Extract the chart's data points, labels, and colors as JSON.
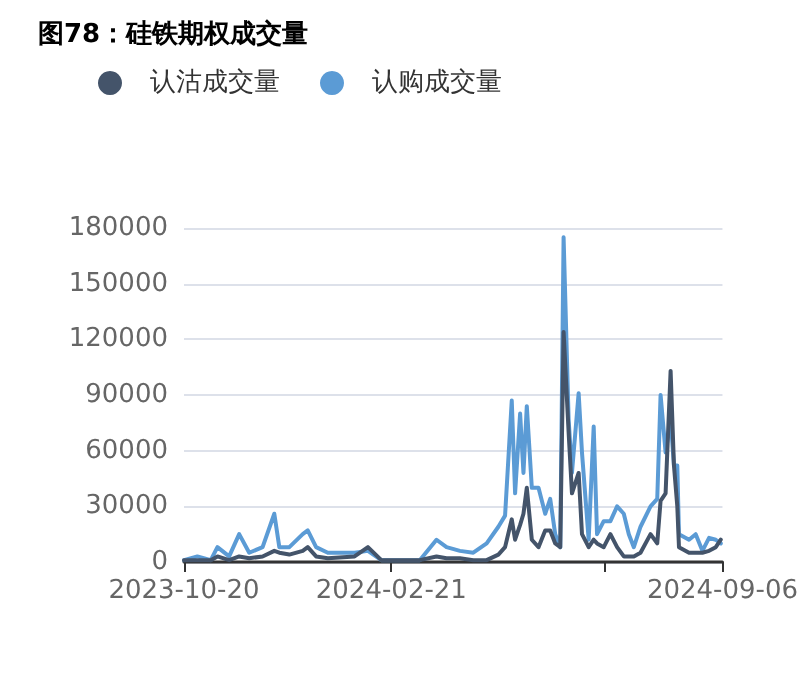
{
  "chart_data": {
    "type": "line",
    "title": "图78：硅铁期权成交量",
    "x": [
      "2023-10-20",
      "2023-10-28",
      "2023-11-05",
      "2023-11-09",
      "2023-11-16",
      "2023-11-22",
      "2023-11-28",
      "2023-12-06",
      "2023-12-13",
      "2023-12-16",
      "2023-12-22",
      "2023-12-30",
      "2024-01-02",
      "2024-01-07",
      "2024-01-14",
      "2024-01-30",
      "2024-02-07",
      "2024-02-15",
      "2024-03-02",
      "2024-03-09",
      "2024-03-19",
      "2024-03-25",
      "2024-04-02",
      "2024-04-10",
      "2024-04-18",
      "2024-04-25",
      "2024-04-29",
      "2024-05-03",
      "2024-05-05",
      "2024-05-08",
      "2024-05-10",
      "2024-05-12",
      "2024-05-15",
      "2024-05-19",
      "2024-05-23",
      "2024-05-26",
      "2024-05-29",
      "2024-06-01",
      "2024-06-03",
      "2024-06-06",
      "2024-06-08",
      "2024-06-12",
      "2024-06-14",
      "2024-06-18",
      "2024-06-21",
      "2024-06-23",
      "2024-06-27",
      "2024-07-01",
      "2024-07-05",
      "2024-07-09",
      "2024-07-12",
      "2024-07-15",
      "2024-07-19",
      "2024-07-25",
      "2024-07-29",
      "2024-07-31",
      "2024-08-03",
      "2024-08-06",
      "2024-08-08",
      "2024-08-10",
      "2024-08-11",
      "2024-08-17",
      "2024-08-21",
      "2024-08-25",
      "2024-08-29",
      "2024-09-02",
      "2024-09-05"
    ],
    "series": [
      {
        "name": "认沽成交量",
        "color": "#44546a",
        "values": [
          1000,
          1000,
          1000,
          3000,
          1000,
          3000,
          2000,
          3000,
          6000,
          5000,
          4000,
          6000,
          8000,
          3000,
          2000,
          3000,
          8000,
          1000,
          1000,
          1000,
          3000,
          2000,
          2000,
          1000,
          1000,
          4000,
          8000,
          23000,
          12000,
          20000,
          26000,
          40000,
          12000,
          8000,
          17000,
          17000,
          10000,
          8000,
          124000,
          70000,
          37000,
          48000,
          15000,
          8000,
          12000,
          10000,
          8000,
          15000,
          8000,
          3000,
          3000,
          3000,
          5000,
          15000,
          10000,
          33000,
          37000,
          103000,
          52000,
          30000,
          8000,
          5000,
          5000,
          5000,
          6000,
          8000,
          12000
        ]
      },
      {
        "name": "认购成交量",
        "color": "#5b9bd5",
        "values": [
          1000,
          3000,
          1000,
          8000,
          3000,
          15000,
          5000,
          8000,
          26000,
          8000,
          8000,
          15000,
          17000,
          8000,
          5000,
          5000,
          6000,
          1000,
          1000,
          1000,
          12000,
          8000,
          6000,
          5000,
          10000,
          19000,
          25000,
          87000,
          37000,
          80000,
          48000,
          84000,
          40000,
          40000,
          26000,
          34000,
          15000,
          8000,
          175000,
          77000,
          48000,
          91000,
          59000,
          12000,
          73000,
          15000,
          22000,
          22000,
          30000,
          26000,
          15000,
          8000,
          19000,
          30000,
          34000,
          90000,
          59000,
          77000,
          52000,
          52000,
          15000,
          12000,
          15000,
          6000,
          13000,
          12000,
          10000
        ]
      }
    ],
    "xlim": [
      "2023-10-20",
      "2024-09-06"
    ],
    "xticks": [
      "2023-10-20",
      "2024-02-21",
      {
        "value": "2024-06-27",
        "label": null
      },
      "2024-09-06"
    ],
    "ylim": [
      0,
      180000
    ],
    "yticks": [
      0,
      30000,
      60000,
      90000,
      120000,
      150000,
      180000
    ],
    "grid": "y",
    "legend": "top left",
    "marker": "none",
    "line_style": "solid"
  }
}
